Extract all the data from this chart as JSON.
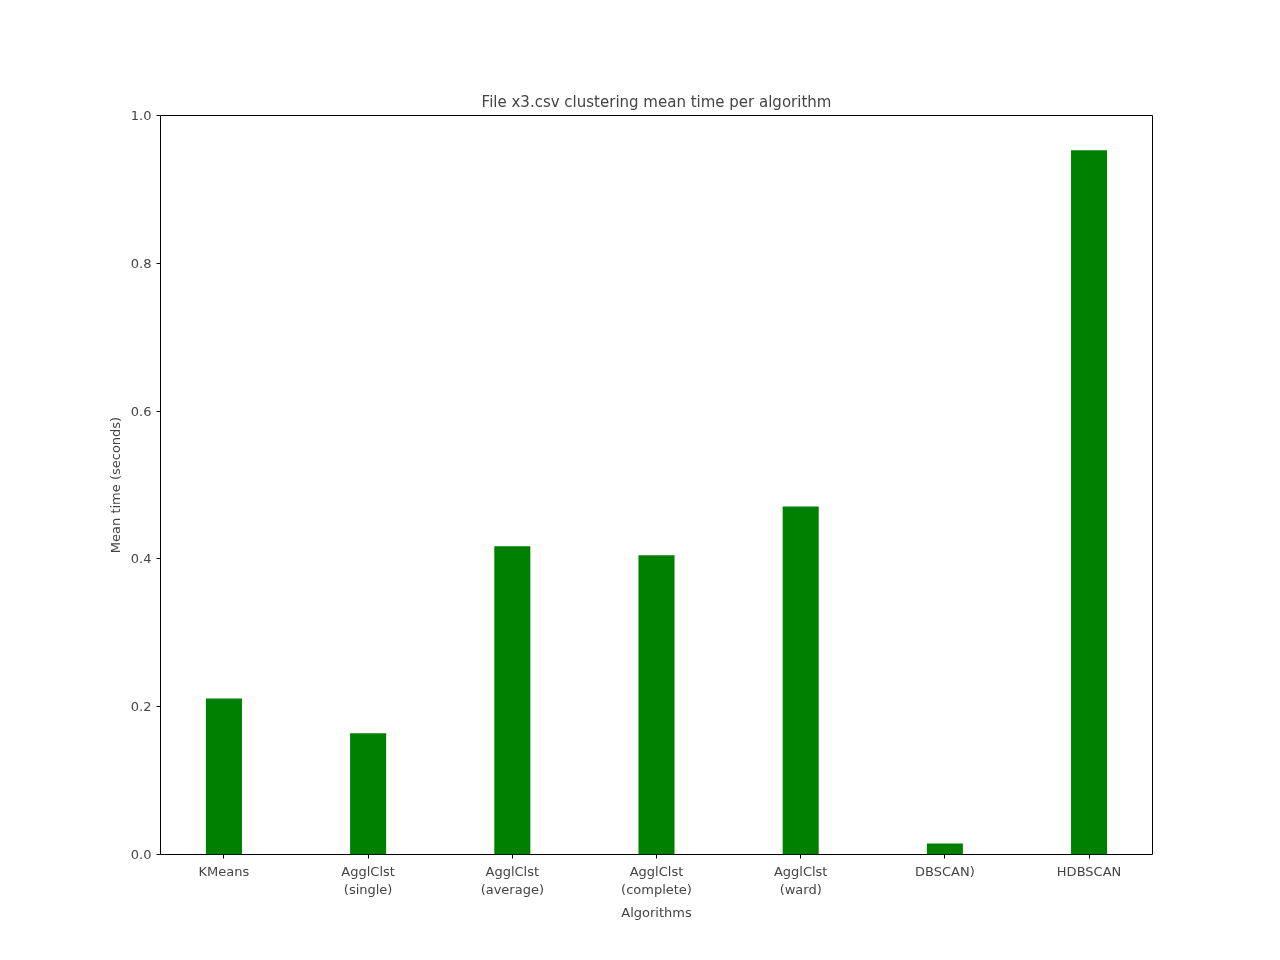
{
  "chart_data": {
    "type": "bar",
    "title": "File x3.csv clustering mean time per algorithm",
    "xlabel": "Algorithms",
    "ylabel": "Mean time (seconds)",
    "categories": [
      "KMeans",
      "AgglClst\n(single)",
      "AgglClst\n(average)",
      "AgglClst\n(complete)",
      "AgglClst\n(ward)",
      "DBSCAN)",
      "HDBSCAN"
    ],
    "values": [
      0.211,
      0.164,
      0.417,
      0.405,
      0.471,
      0.015,
      0.953
    ],
    "color": "#008000",
    "ylim": [
      0,
      1.0
    ],
    "yticks": [
      {
        "value": 0,
        "label": "0.0"
      },
      {
        "value": 0.2,
        "label": "0.2"
      },
      {
        "value": 0.4,
        "label": "0.4"
      },
      {
        "value": 0.6,
        "label": "0.6"
      },
      {
        "value": 0.8,
        "label": "0.8"
      },
      {
        "value": 1.0,
        "label": "1.0"
      }
    ],
    "grid": false
  }
}
